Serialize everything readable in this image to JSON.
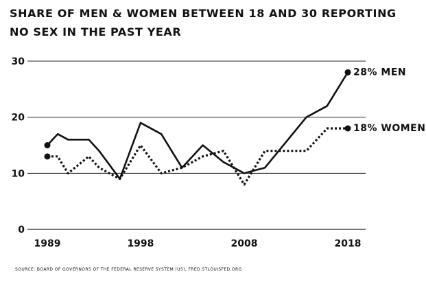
{
  "chart_data": {
    "type": "line",
    "title": "Share of men & women between 18 and 30 reporting no sex in the past year",
    "xlabel": "",
    "ylabel": "",
    "xlim": [
      1989,
      2018
    ],
    "ylim": [
      0,
      30
    ],
    "x_ticks": [
      "1989",
      "1998",
      "2008",
      "2018"
    ],
    "y_ticks": [
      "0",
      "10",
      "20",
      "30"
    ],
    "grid": "horizontal",
    "series": [
      {
        "name": "MEN",
        "end_label": "28% MEN",
        "style": "solid",
        "color": "#111111",
        "x": [
          1989,
          1990,
          1991,
          1993,
          1994,
          1996,
          1998,
          2000,
          2002,
          2004,
          2006,
          2008,
          2010,
          2014,
          2016,
          2018
        ],
        "values": [
          15,
          17,
          16,
          16,
          14,
          9,
          19,
          17,
          11,
          15,
          12,
          10,
          11,
          20,
          22,
          28
        ]
      },
      {
        "name": "WOMEN",
        "end_label": "18% WOMEN",
        "style": "dotted",
        "color": "#111111",
        "x": [
          1989,
          1990,
          1991,
          1993,
          1994,
          1996,
          1998,
          2000,
          2002,
          2004,
          2006,
          2008,
          2010,
          2014,
          2016,
          2018
        ],
        "values": [
          13,
          13,
          10,
          13,
          11,
          9,
          15,
          10,
          11,
          13,
          14,
          8,
          14,
          14,
          18,
          18
        ]
      }
    ]
  },
  "source": "Source: Board of Governors of the Federal Reserve System (US), fred.stlouisfed.org"
}
